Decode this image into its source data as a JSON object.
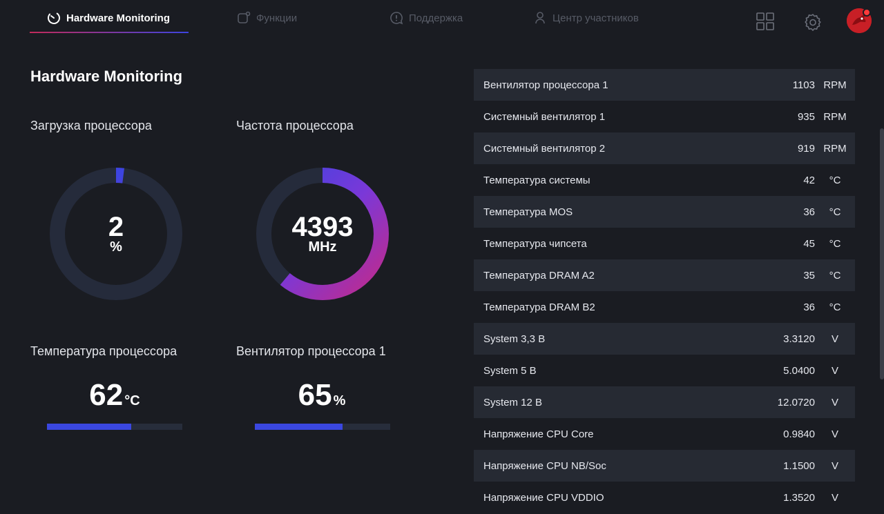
{
  "nav": {
    "tabs": [
      {
        "label": "Hardware Monitoring",
        "icon": "gauge-icon",
        "active": true
      },
      {
        "label": "Функции",
        "icon": "functions-icon",
        "active": false
      },
      {
        "label": "Поддержка",
        "icon": "support-chat-icon",
        "active": false
      },
      {
        "label": "Центр участников",
        "icon": "member-icon",
        "active": false
      }
    ],
    "right_icons": [
      "grid-icon",
      "settings-gear-icon",
      "avatar"
    ]
  },
  "page": {
    "title": "Hardware Monitoring"
  },
  "widgets": {
    "cpu_load": {
      "label": "Загрузка процессора",
      "value": "2",
      "unit": "%",
      "fraction": 0.02
    },
    "cpu_freq": {
      "label": "Частота процессора",
      "value": "4393",
      "unit": "MHz",
      "fraction": 0.61
    },
    "cpu_temp": {
      "label": "Температура процессора",
      "value": "62",
      "unit": "°C",
      "fraction": 0.62
    },
    "cpu_fan": {
      "label": "Вентилятор процессора 1",
      "value": "65",
      "unit": "%",
      "fraction": 0.65
    }
  },
  "sensors": [
    {
      "name": "Вентилятор процессора 1",
      "value": "1103",
      "unit": "RPM"
    },
    {
      "name": "Системный вентилятор 1",
      "value": "935",
      "unit": "RPM"
    },
    {
      "name": "Системный вентилятор 2",
      "value": "919",
      "unit": "RPM"
    },
    {
      "name": "Температура системы",
      "value": "42",
      "unit": "°C"
    },
    {
      "name": "Температура MOS",
      "value": "36",
      "unit": "°C"
    },
    {
      "name": "Температура чипсета",
      "value": "45",
      "unit": "°C"
    },
    {
      "name": "Температура DRAM A2",
      "value": "35",
      "unit": "°C"
    },
    {
      "name": "Температура DRAM B2",
      "value": "36",
      "unit": "°C"
    },
    {
      "name": "System 3,3 В",
      "value": "3.3120",
      "unit": "V"
    },
    {
      "name": "System 5 В",
      "value": "5.0400",
      "unit": "V"
    },
    {
      "name": "System 12 В",
      "value": "12.0720",
      "unit": "V"
    },
    {
      "name": "Напряжение CPU Core",
      "value": "0.9840",
      "unit": "V"
    },
    {
      "name": "Напряжение CPU NB/Soc",
      "value": "1.1500",
      "unit": "V"
    },
    {
      "name": "Напряжение CPU VDDIO",
      "value": "1.3520",
      "unit": "V"
    }
  ],
  "colors": {
    "background": "#1a1c22",
    "row_alt": "#262a33",
    "ring_track": "#252b3b",
    "accent_start": "#c22a8a",
    "accent_end": "#3d44e0",
    "bar_fill": "#3a47e0"
  }
}
